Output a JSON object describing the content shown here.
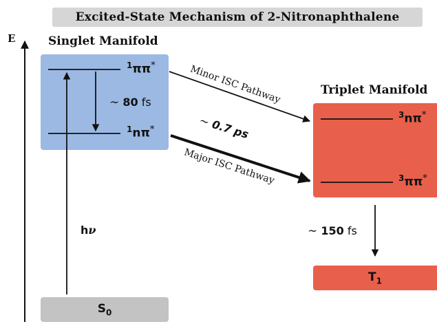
{
  "title": "Excited-State Mechanism of 2-Nitronaphthalene",
  "energy_axis_label": "E",
  "singlet": {
    "manifold_label": "Singlet Manifold",
    "upper_state": {
      "sup": "1",
      "text": "ππ",
      "star": "*"
    },
    "lower_state": {
      "sup": "1",
      "text": "nπ",
      "star": "*"
    },
    "ic_time": {
      "tilde": "∼",
      "value": "80",
      "unit": "fs"
    }
  },
  "triplet": {
    "manifold_label": "Triplet Manifold",
    "upper_state": {
      "sup": "3",
      "text": "nπ",
      "star": "*"
    },
    "lower_state": {
      "sup": "3",
      "text": "ππ",
      "star": "*"
    },
    "ic_time": {
      "tilde": "∼",
      "value": "150",
      "unit": "fs"
    }
  },
  "ground_state": {
    "text": "S",
    "sub": "0"
  },
  "t1_state": {
    "text": "T",
    "sub": "1"
  },
  "excitation": {
    "text": "h",
    "nu": "ν"
  },
  "minor_pathway_label": "Minor ISC Pathway",
  "major_pathway_label": "Major ISC Pathway",
  "isc_time": {
    "tilde": "∼",
    "value": "0.7",
    "unit": "ps"
  },
  "colors": {
    "singlet_box": "#9bb9e3",
    "triplet_box": "#e8604b",
    "ground_box": "#c3c3c3",
    "title_bar": "#d6d6d6"
  }
}
